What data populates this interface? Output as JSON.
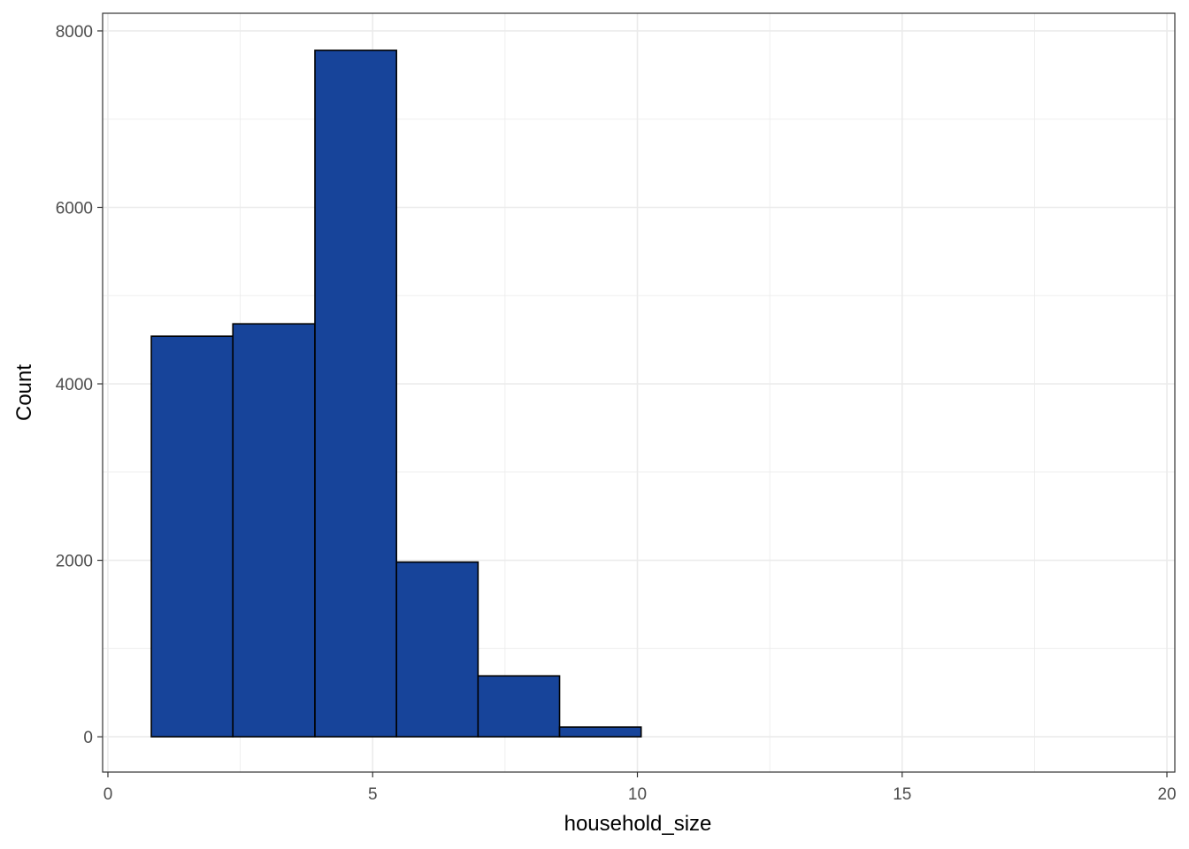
{
  "chart_data": {
    "type": "bar",
    "xlabel": "household_size",
    "ylabel": "Count",
    "xlim": [
      -0.1,
      20.15
    ],
    "ylim": [
      -400,
      8200
    ],
    "x_ticks": [
      0,
      5,
      10,
      15,
      20
    ],
    "x_tick_labels": [
      "0",
      "5",
      "10",
      "15",
      "20"
    ],
    "y_ticks": [
      0,
      2000,
      4000,
      6000,
      8000
    ],
    "y_tick_labels": [
      "0",
      "2000",
      "4000",
      "6000",
      "8000"
    ],
    "bins": [
      {
        "x_start": 0.82,
        "x_end": 2.36,
        "count": 4540
      },
      {
        "x_start": 2.36,
        "x_end": 3.91,
        "count": 4680
      },
      {
        "x_start": 3.91,
        "x_end": 5.45,
        "count": 7780
      },
      {
        "x_start": 5.45,
        "x_end": 6.99,
        "count": 1980
      },
      {
        "x_start": 6.99,
        "x_end": 8.53,
        "count": 690
      },
      {
        "x_start": 8.53,
        "x_end": 10.07,
        "count": 110
      },
      {
        "x_start": 10.07,
        "x_end": 11.62,
        "count": 0
      },
      {
        "x_start": 11.62,
        "x_end": 13.16,
        "count": 0
      },
      {
        "x_start": 13.16,
        "x_end": 14.7,
        "count": 0
      },
      {
        "x_start": 14.7,
        "x_end": 16.24,
        "count": 0
      },
      {
        "x_start": 16.24,
        "x_end": 17.78,
        "count": 0
      },
      {
        "x_start": 17.78,
        "x_end": 19.33,
        "count": 0
      }
    ],
    "grid": true,
    "colors": {
      "fill": "#17449a",
      "outline": "#000000",
      "grid": "#ebebeb",
      "panel_border": "#333333"
    }
  }
}
